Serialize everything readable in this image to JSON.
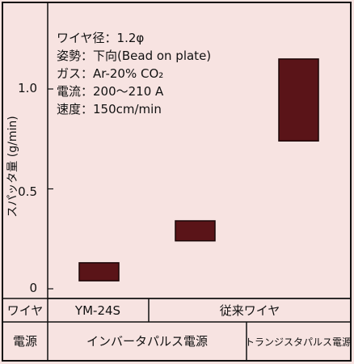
{
  "chart_data": {
    "type": "bar",
    "ylabel": "スパッタ量 (g/min)",
    "yticks": [
      "0",
      "0.5",
      "1.0"
    ],
    "ylim": [
      0,
      1.35
    ],
    "annotations": [
      "ワイヤ径：1.2φ",
      "姿勢：下向(Bead on plate)",
      "ガス：Ar-20% CO₂",
      "電流：200～210 A",
      "速度：150cm/min"
    ],
    "series": [
      {
        "label": "YM-24S / インバータパルス電源",
        "low": 0.04,
        "high": 0.13,
        "color": "#5a1418"
      },
      {
        "label": "従来ワイヤ / インバータパルス電源",
        "low": 0.24,
        "high": 0.34,
        "color": "#5a1418"
      },
      {
        "label": "従来ワイヤ / トランジスタパルス電源",
        "low": 0.74,
        "high": 1.15,
        "color": "#5a1418"
      }
    ]
  },
  "table": {
    "wire_header": "ワイヤ",
    "wire_1": "YM-24S",
    "wire_2": "従来ワイヤ",
    "power_header": "電源",
    "power_1": "インバータパルス電源",
    "power_2": "トランジスタパルス電源"
  }
}
